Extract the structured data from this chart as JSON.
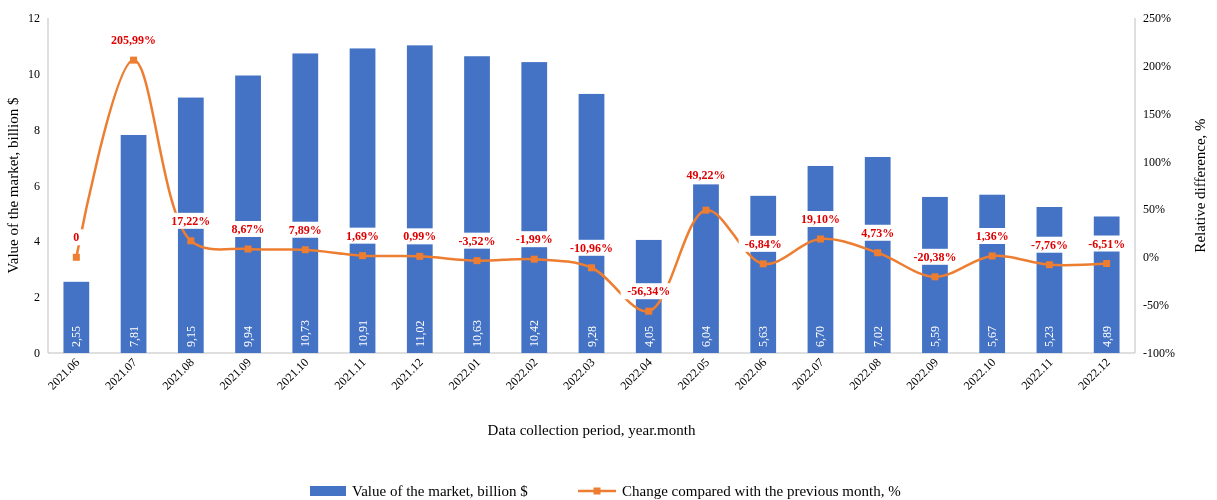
{
  "chart_data": {
    "type": "bar",
    "xlabel": "Data collection period, year.month",
    "ylabel": "Value of the market, billion $",
    "y2label": "Relative difference, %",
    "categories": [
      "2021.06",
      "2021.07",
      "2021.08",
      "2021.09",
      "2021.10",
      "2021.11",
      "2021.12",
      "2022.01",
      "2022.02",
      "2022.03",
      "2022.04",
      "2022.05",
      "2022.06",
      "2022.07",
      "2022.08",
      "2022.09",
      "2022.10",
      "2022.11",
      "2022.12"
    ],
    "series": [
      {
        "name": "Value of the market, billion $",
        "color": "#4472c4",
        "values": [
          2.55,
          7.81,
          9.15,
          9.94,
          10.73,
          10.91,
          11.02,
          10.63,
          10.42,
          9.28,
          4.05,
          6.04,
          5.63,
          6.7,
          7.02,
          5.59,
          5.67,
          5.23,
          4.89
        ],
        "value_labels": [
          "2,55",
          "7,81",
          "9,15",
          "9,94",
          "10,73",
          "10,91",
          "11,02",
          "10,63",
          "10,42",
          "9,28",
          "4,05",
          "6,04",
          "5,63",
          "6,70",
          "7,02",
          "5,59",
          "5,67",
          "5,23",
          "4,89"
        ]
      },
      {
        "name": "Change compared with the previous month, %",
        "type": "line",
        "axis": "y2",
        "color": "#ed7d31",
        "marker": "square",
        "values": [
          0,
          205.99,
          17.22,
          8.67,
          7.89,
          1.69,
          0.99,
          -3.52,
          -1.99,
          -10.96,
          -56.34,
          49.22,
          -6.84,
          19.1,
          4.73,
          -20.38,
          1.36,
          -7.76,
          -6.51
        ],
        "value_labels": [
          "0",
          "205,99%",
          "17,22%",
          "8,67%",
          "7,89%",
          "1,69%",
          "0,99%",
          "-3,52%",
          "-1,99%",
          "-10,96%",
          "-56,34%",
          "49,22%",
          "-6,84%",
          "19,10%",
          "4,73%",
          "-20,38%",
          "1,36%",
          "-7,76%",
          "-6,51%"
        ]
      }
    ],
    "ylim": [
      0,
      12
    ],
    "yticks": [
      0,
      2,
      4,
      6,
      8,
      10,
      12
    ],
    "y2lim": [
      -100,
      250
    ],
    "y2ticks": [
      {
        "value": -100,
        "label": "-100%"
      },
      {
        "value": -50,
        "label": "-50%"
      },
      {
        "value": 0,
        "label": "0%"
      },
      {
        "value": 50,
        "label": "50%"
      },
      {
        "value": 100,
        "label": "100%"
      },
      {
        "value": 150,
        "label": "150%"
      },
      {
        "value": 200,
        "label": "200%"
      },
      {
        "value": 250,
        "label": "250%"
      }
    ],
    "legend": "bottom"
  }
}
